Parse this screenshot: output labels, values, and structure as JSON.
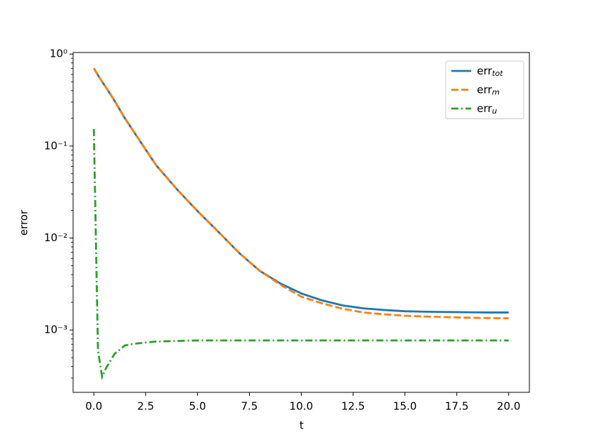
{
  "chart_data": {
    "type": "line",
    "xlabel": "t",
    "ylabel": "error",
    "yscale": "log",
    "xlim": [
      -1,
      21
    ],
    "ylim": [
      0.00021,
      1.04
    ],
    "xticks": [
      {
        "value": 0,
        "label": "0.0"
      },
      {
        "value": 2.5,
        "label": "2.5"
      },
      {
        "value": 5,
        "label": "5.0"
      },
      {
        "value": 7.5,
        "label": "7.5"
      },
      {
        "value": 10,
        "label": "10.0"
      },
      {
        "value": 12.5,
        "label": "12.5"
      },
      {
        "value": 15,
        "label": "15.0"
      },
      {
        "value": 17.5,
        "label": "17.5"
      },
      {
        "value": 20,
        "label": "20.0"
      }
    ],
    "yticks": [
      {
        "value": 0.001,
        "label": "10⁻³"
      },
      {
        "value": 0.01,
        "label": "10⁻²"
      },
      {
        "value": 0.1,
        "label": "10⁻¹"
      },
      {
        "value": 1,
        "label": "10⁰"
      }
    ],
    "yminorticks": [
      0.0003,
      0.0004,
      0.0005,
      0.0006,
      0.0007,
      0.0008,
      0.0009,
      0.002,
      0.003,
      0.004,
      0.005,
      0.006,
      0.007,
      0.008,
      0.009,
      0.02,
      0.03,
      0.04,
      0.05,
      0.06,
      0.07,
      0.08,
      0.09,
      0.2,
      0.3,
      0.4,
      0.5,
      0.6,
      0.7,
      0.8,
      0.9
    ],
    "legend": "upper right",
    "x": [
      0,
      0.2,
      0.4,
      0.6,
      1,
      1.5,
      2,
      3,
      4,
      5,
      6,
      7,
      8,
      9,
      10,
      11,
      12,
      13,
      14,
      15,
      16,
      17,
      18,
      19,
      20
    ],
    "series": [
      {
        "name": "err",
        "subscript": "tot",
        "color": "#1f77b4",
        "linestyle": "solid",
        "values": [
          0.7,
          0.59,
          0.5,
          0.43,
          0.31,
          0.2,
          0.135,
          0.062,
          0.034,
          0.0196,
          0.0117,
          0.0069,
          0.0044,
          0.0032,
          0.0025,
          0.0021,
          0.00185,
          0.00172,
          0.00165,
          0.0016,
          0.00158,
          0.00157,
          0.00156,
          0.00155,
          0.00155
        ]
      },
      {
        "name": "err",
        "subscript": "m",
        "color": "#ff7f0e",
        "linestyle": "dashed",
        "values": [
          0.7,
          0.59,
          0.5,
          0.43,
          0.31,
          0.2,
          0.135,
          0.062,
          0.034,
          0.0196,
          0.0117,
          0.0069,
          0.0044,
          0.0031,
          0.0023,
          0.00195,
          0.0017,
          0.00155,
          0.00148,
          0.00143,
          0.0014,
          0.00138,
          0.00136,
          0.00135,
          0.00134
        ]
      },
      {
        "name": "err",
        "subscript": "u",
        "color": "#2ca02c",
        "linestyle": "dashdot",
        "values": [
          0.153,
          0.0006,
          0.00031,
          0.00039,
          0.00055,
          0.00068,
          0.00071,
          0.00075,
          0.00076,
          0.00077,
          0.00077,
          0.00077,
          0.00077,
          0.00077,
          0.00077,
          0.00077,
          0.00077,
          0.00077,
          0.00077,
          0.00077,
          0.00077,
          0.00077,
          0.00077,
          0.00077,
          0.00077
        ]
      }
    ]
  }
}
